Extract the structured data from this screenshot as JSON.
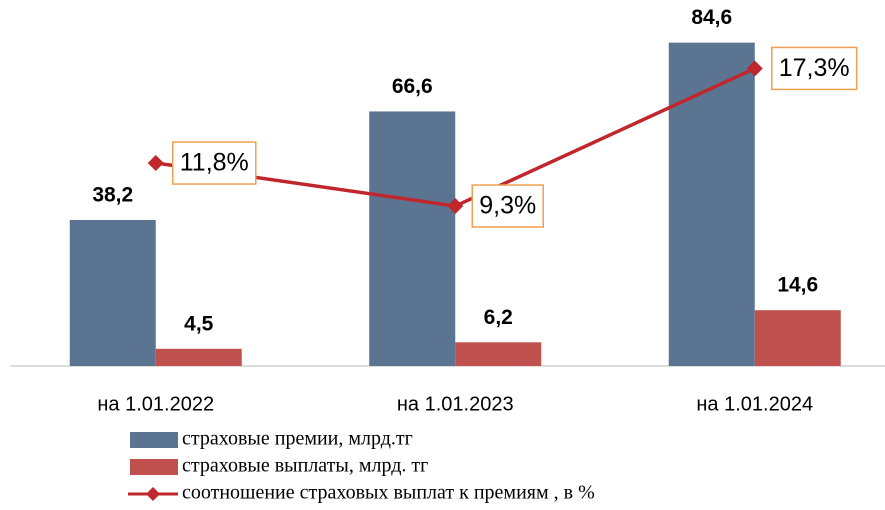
{
  "chart_data": {
    "type": "bar",
    "categories": [
      "на 1.01.2022",
      "на 1.01.2023",
      "на 1.01.2024"
    ],
    "series": [
      {
        "name": "страховые премии, млрд.тг",
        "color": "#5b7492",
        "values": [
          38.2,
          66.6,
          84.6
        ],
        "value_labels": [
          "38,2",
          "66,6",
          "84,6"
        ]
      },
      {
        "name": "страховые выплаты, млрд. тг",
        "color": "#c0504d",
        "values": [
          4.5,
          6.2,
          14.6
        ],
        "value_labels": [
          "4,5",
          "6,2",
          "14,6"
        ]
      },
      {
        "name": "соотношение страховых выплат к премиям , в %",
        "type": "line",
        "axis": "y2",
        "color": "#c0272d",
        "values": [
          11.8,
          9.3,
          17.3
        ],
        "value_labels": [
          "11,8%",
          "9,3%",
          "17,3%"
        ],
        "label_border": "#f0a050"
      }
    ],
    "ylim": [
      0,
      90
    ],
    "y2lim": [
      0,
      20
    ],
    "grid": false
  }
}
